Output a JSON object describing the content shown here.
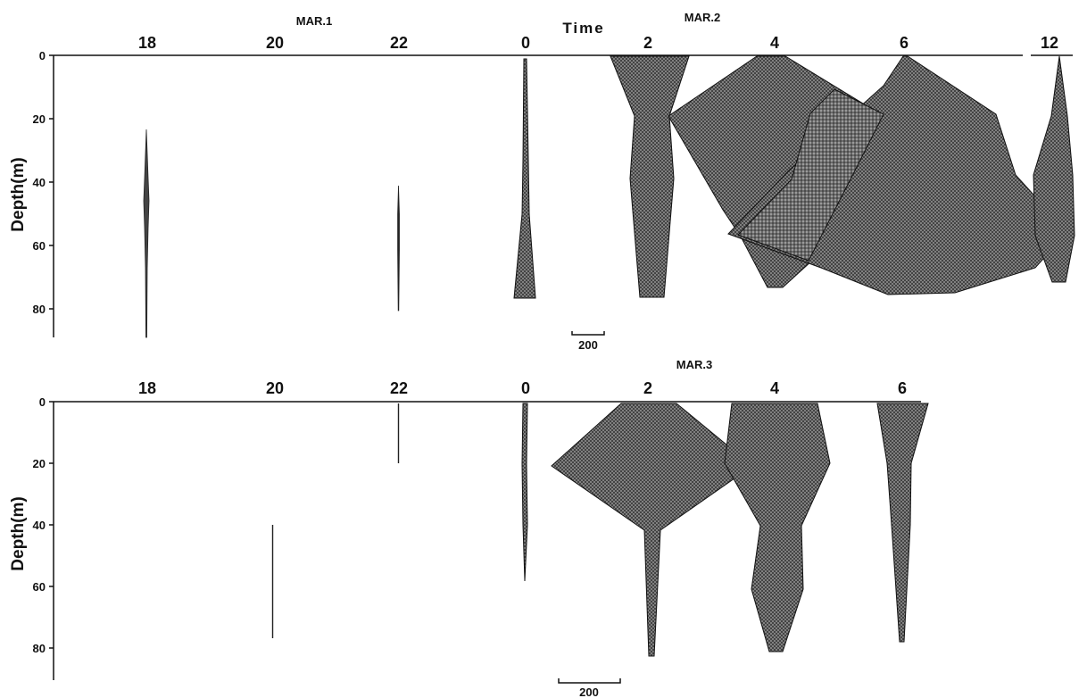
{
  "figure": {
    "time_label": "Time",
    "scale_label": "200",
    "depth_ticks": [
      "0",
      "20",
      "40",
      "60",
      "80"
    ]
  },
  "colors": {
    "fill": "#8a8a8a",
    "stroke": "#111111",
    "hatch": "#444444"
  },
  "chart_data": [
    {
      "type": "area",
      "panel": "top",
      "date_labels": [
        "MAR.1",
        "MAR.2"
      ],
      "ylabel": "Depth(m)",
      "ylim": [
        90,
        0
      ],
      "x_ticks": [
        "18",
        "20",
        "22",
        "0",
        "2",
        "4",
        "6",
        "12"
      ],
      "scale_bar": "200",
      "profiles": [
        {
          "time": "18",
          "width_at_depth": [
            [
              24,
              0
            ],
            [
              40,
              6
            ],
            [
              46,
              10
            ],
            [
              55,
              6
            ],
            [
              65,
              4
            ],
            [
              75,
              2
            ],
            [
              90,
              2
            ]
          ]
        },
        {
          "time": "20",
          "width_at_depth": []
        },
        {
          "time": "22",
          "width_at_depth": [
            [
              41,
              0
            ],
            [
              50,
              2
            ],
            [
              60,
              4
            ],
            [
              70,
              2
            ],
            [
              81,
              0
            ]
          ]
        },
        {
          "time": "0",
          "width_at_depth": [
            [
              1,
              8
            ],
            [
              20,
              10
            ],
            [
              40,
              12
            ],
            [
              58,
              10
            ],
            [
              77,
              60
            ]
          ]
        },
        {
          "time": "2",
          "width_at_depth": [
            [
              0,
              320
            ],
            [
              18,
              100
            ],
            [
              38,
              120
            ],
            [
              77,
              90
            ]
          ]
        },
        {
          "time": "4",
          "width_at_depth": [
            [
              0,
              280
            ],
            [
              18,
              1080
            ],
            [
              58,
              490
            ],
            [
              74,
              80
            ]
          ]
        },
        {
          "time": "6",
          "width_at_depth": [
            [
              0,
              120
            ],
            [
              18,
              840
            ],
            [
              38,
              1270
            ],
            [
              57,
              1180
            ],
            [
              75,
              660
            ]
          ]
        },
        {
          "time": "12",
          "width_at_depth": [
            [
              0,
              0
            ],
            [
              37,
              160
            ],
            [
              57,
              300
            ],
            [
              72,
              120
            ]
          ]
        }
      ]
    },
    {
      "type": "area",
      "panel": "bottom",
      "date_labels": [
        "MAR.3"
      ],
      "ylabel": "Depth(m)",
      "ylim": [
        90,
        0
      ],
      "x_ticks": [
        "18",
        "20",
        "22",
        "0",
        "2",
        "4",
        "6"
      ],
      "scale_bar": "200",
      "profiles": [
        {
          "time": "18",
          "width_at_depth": []
        },
        {
          "time": "20",
          "width_at_depth": [
            [
              40,
              2
            ],
            [
              60,
              2
            ],
            [
              76,
              2
            ]
          ]
        },
        {
          "time": "22",
          "width_at_depth": [
            [
              0,
              2
            ],
            [
              10,
              2
            ],
            [
              20,
              2
            ]
          ]
        },
        {
          "time": "0",
          "width_at_depth": [
            [
              0,
              12
            ],
            [
              20,
              10
            ],
            [
              40,
              10
            ],
            [
              58,
              0
            ]
          ]
        },
        {
          "time": "2",
          "width_at_depth": [
            [
              0,
              560
            ],
            [
              21,
              1280
            ],
            [
              40,
              440
            ],
            [
              82,
              40
            ]
          ]
        },
        {
          "time": "4",
          "width_at_depth": [
            [
              0,
              560
            ],
            [
              20,
              600
            ],
            [
              40,
              160
            ],
            [
              60,
              280
            ],
            [
              78,
              80
            ]
          ]
        },
        {
          "time": "6",
          "width_at_depth": [
            [
              0,
              400
            ],
            [
              20,
              220
            ],
            [
              40,
              150
            ],
            [
              78,
              40
            ]
          ]
        }
      ]
    }
  ]
}
